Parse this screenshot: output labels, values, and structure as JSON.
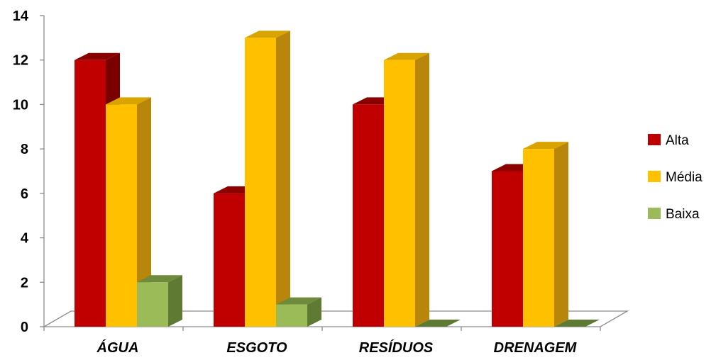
{
  "chart_data": {
    "type": "bar",
    "categories": [
      "ÁGUA",
      "ESGOTO",
      "RESÍDUOS",
      "DRENAGEM"
    ],
    "series": [
      {
        "name": "Alta",
        "values": [
          12,
          6,
          10,
          7
        ],
        "color": "#C00000",
        "top_color": "#8B0000",
        "side_color": "#7A0000"
      },
      {
        "name": "Média",
        "values": [
          10,
          13,
          12,
          8
        ],
        "color": "#FFC000",
        "top_color": "#D9A300",
        "side_color": "#B8860B"
      },
      {
        "name": "Baixa",
        "values": [
          2,
          1,
          0,
          0
        ],
        "color": "#9BBB59",
        "top_color": "#6E8B3D",
        "side_color": "#5F7A33"
      }
    ],
    "ylim": [
      0,
      14
    ],
    "yticks": [
      "0",
      "2",
      "4",
      "6",
      "8",
      "10",
      "12",
      "14"
    ],
    "legend_position": "right",
    "grid": false,
    "title": "",
    "xlabel": "",
    "ylabel": ""
  }
}
